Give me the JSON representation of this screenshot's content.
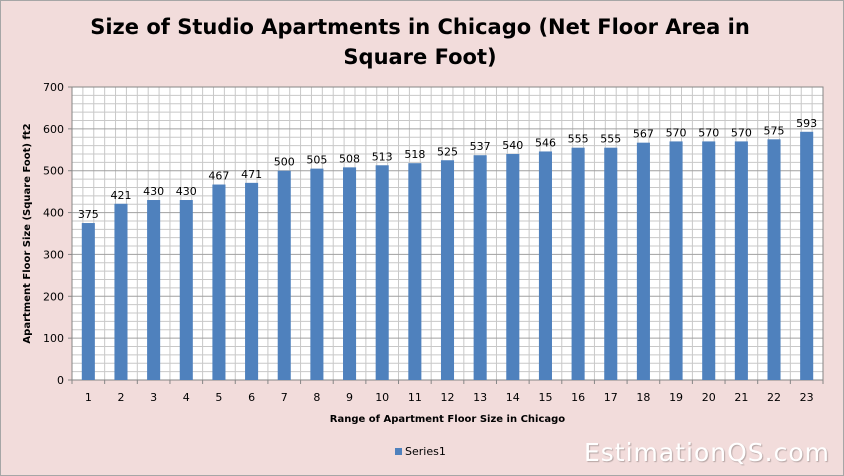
{
  "chart_data": {
    "type": "bar",
    "title": "Size of Studio Apartments in Chicago (Net Floor Area in Square Foot)",
    "xlabel": "Range of Apartment Floor Size in Chicago",
    "ylabel": "Apartment Floor Size (Square Foot) ft2",
    "categories": [
      "1",
      "2",
      "3",
      "4",
      "5",
      "6",
      "7",
      "8",
      "9",
      "10",
      "11",
      "12",
      "13",
      "14",
      "15",
      "16",
      "17",
      "18",
      "19",
      "20",
      "21",
      "22",
      "23"
    ],
    "series": [
      {
        "name": "Series1",
        "values": [
          375,
          421,
          430,
          430,
          467,
          471,
          500,
          505,
          508,
          513,
          518,
          525,
          537,
          540,
          546,
          555,
          555,
          567,
          570,
          570,
          570,
          575,
          593
        ]
      }
    ],
    "ylim": [
      0,
      700
    ],
    "yticks": [
      0,
      100,
      200,
      300,
      400,
      500,
      600,
      700
    ],
    "grid": true,
    "legend_position": "bottom",
    "data_labels": true,
    "bar_color": "#4f81bd"
  },
  "watermark": "EstimationQS.com"
}
